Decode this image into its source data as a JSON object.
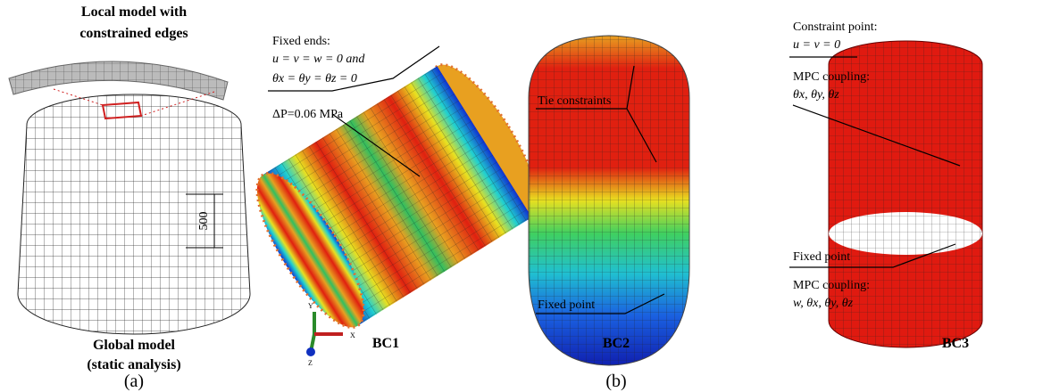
{
  "panel_a": {
    "top_label": [
      "Local model with",
      "constrained edges"
    ],
    "dimension": "500",
    "bottom_label": [
      "Global model",
      "(static analysis)"
    ],
    "caption": "(a)"
  },
  "panel_b": {
    "caption": "(b)",
    "bc1": {
      "title": "BC1",
      "fixed_ends": [
        "Fixed ends:",
        "u = v = w = 0 and",
        "θx = θy = θz = 0"
      ],
      "pressure": "ΔP=0.06 MPa",
      "axes": [
        "Y",
        "X",
        "Z"
      ]
    },
    "bc2": {
      "title": "BC2",
      "tie": "Tie constraints",
      "fixed_point": "Fixed point"
    },
    "bc3": {
      "title": "BC3",
      "constraint": [
        "Constraint point:",
        "u = v = 0"
      ],
      "mpc_top": [
        "MPC coupling:",
        "θx, θy, θz"
      ],
      "fixed_point": "Fixed point",
      "mpc_bottom": [
        "MPC coupling:",
        "w, θx, θy, θz"
      ]
    }
  }
}
